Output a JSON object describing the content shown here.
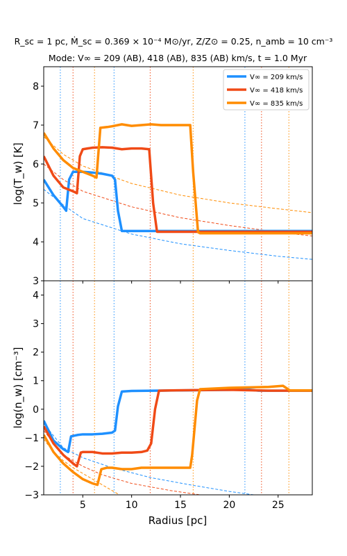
{
  "title_line1": "R_sc = 1 pc, Ṁ_sc = 0.369 × 10⁻⁴ M⊙/yr, Z/Z⊙ = 0.25, n_amb = 10 cm⁻³",
  "title_line2": "Mode: V∞ = 209 (AB), 418 (AB), 835 (AB) km/s, t = 1.0 Myr",
  "xlabel": "Radius [pc]",
  "colors": {
    "s209": "#1e90ff",
    "s418": "#f04a16",
    "s835": "#ff8c00"
  },
  "chart_data": [
    {
      "type": "line",
      "panel": "top",
      "ylabel": "log(T_w) [K]",
      "xlim": [
        1,
        28.5
      ],
      "ylim": [
        3,
        8.5
      ],
      "xticks": [
        5,
        10,
        15,
        20,
        25
      ],
      "yticks": [
        3,
        4,
        5,
        6,
        7,
        8
      ],
      "legend": [
        "V∞ = 209 km/s",
        "V∞ = 418 km/s",
        "V∞ = 835 km/s"
      ],
      "legend_position": "top-right",
      "series": [
        {
          "name": "V∞ = 209 km/s",
          "color": "#1e90ff",
          "x": [
            1,
            2,
            3,
            3.3,
            3.6,
            4,
            5,
            6,
            7,
            8,
            8.3,
            8.6,
            9,
            28.5
          ],
          "y": [
            5.6,
            5.2,
            4.9,
            4.8,
            5.6,
            5.8,
            5.8,
            5.78,
            5.75,
            5.7,
            5.6,
            4.8,
            4.28,
            4.28
          ]
        },
        {
          "name": "V∞ = 418 km/s",
          "color": "#f04a16",
          "x": [
            1,
            2,
            3,
            4,
            4.4,
            4.7,
            5,
            6,
            7,
            8,
            9,
            10,
            11,
            11.8,
            12.2,
            12.6,
            28.5
          ],
          "y": [
            6.2,
            5.7,
            5.4,
            5.3,
            5.25,
            6.2,
            6.38,
            6.42,
            6.43,
            6.42,
            6.38,
            6.4,
            6.4,
            6.38,
            5.0,
            4.26,
            4.26
          ]
        },
        {
          "name": "V∞ = 835 km/s",
          "color": "#ff8c00",
          "x": [
            1,
            2,
            3,
            4,
            5,
            6,
            6.4,
            6.8,
            7.5,
            8,
            9,
            10,
            11,
            12,
            13,
            14,
            15,
            16,
            16.3,
            16.8,
            17,
            28.5
          ],
          "y": [
            6.8,
            6.4,
            6.1,
            5.9,
            5.8,
            5.7,
            5.65,
            6.93,
            6.95,
            6.97,
            7.02,
            6.98,
            7.0,
            7.02,
            7.0,
            7.0,
            7.0,
            7.0,
            5.8,
            4.25,
            4.22,
            4.22
          ]
        }
      ],
      "dashed_reference": [
        {
          "color": "#1e90ff",
          "x": [
            1,
            3,
            5,
            10,
            15,
            20,
            25,
            28.5
          ],
          "y": [
            5.35,
            4.95,
            4.6,
            4.2,
            3.95,
            3.78,
            3.63,
            3.55
          ]
        },
        {
          "color": "#f04a16",
          "x": [
            1,
            3,
            5,
            10,
            15,
            20,
            25,
            28.5
          ],
          "y": [
            6.0,
            5.6,
            5.3,
            4.9,
            4.62,
            4.42,
            4.25,
            4.15
          ]
        },
        {
          "color": "#ff8c00",
          "x": [
            1,
            3,
            5,
            10,
            15,
            20,
            25,
            28.5
          ],
          "y": [
            6.7,
            6.25,
            5.95,
            5.5,
            5.2,
            5.0,
            4.85,
            4.75
          ]
        }
      ],
      "vlines": [
        {
          "color": "#1e90ff",
          "x": [
            2.7,
            8.2,
            21.6
          ]
        },
        {
          "color": "#f04a16",
          "x": [
            4.0,
            11.9,
            23.3
          ]
        },
        {
          "color": "#ff8c00",
          "x": [
            6.2,
            16.3,
            26.1
          ]
        }
      ]
    },
    {
      "type": "line",
      "panel": "bottom",
      "ylabel": "log(n_w) [cm⁻³]",
      "xlim": [
        1,
        28.5
      ],
      "ylim": [
        -3,
        4.5
      ],
      "xticks": [
        5,
        10,
        15,
        20,
        25
      ],
      "yticks": [
        -3,
        -2,
        -1,
        0,
        1,
        2,
        3,
        4
      ],
      "series": [
        {
          "name": "V∞ = 209 km/s",
          "color": "#1e90ff",
          "x": [
            1,
            2,
            3,
            3.5,
            3.8,
            4.5,
            5,
            6,
            7,
            8,
            8.3,
            8.6,
            9,
            10,
            15,
            20,
            21.5,
            23,
            28.5
          ],
          "y": [
            -0.4,
            -1.1,
            -1.4,
            -1.5,
            -0.95,
            -0.9,
            -0.88,
            -0.88,
            -0.86,
            -0.82,
            -0.75,
            0.1,
            0.62,
            0.64,
            0.66,
            0.68,
            0.7,
            0.65,
            0.65
          ]
        },
        {
          "name": "V∞ = 418 km/s",
          "color": "#f04a16",
          "x": [
            1,
            2,
            3,
            4,
            4.4,
            4.8,
            5,
            6,
            7,
            8,
            9,
            10,
            11,
            11.6,
            12,
            12.4,
            12.8,
            14,
            20,
            24,
            28.5
          ],
          "y": [
            -0.6,
            -1.2,
            -1.6,
            -1.9,
            -2.0,
            -1.52,
            -1.5,
            -1.5,
            -1.55,
            -1.55,
            -1.52,
            -1.52,
            -1.5,
            -1.45,
            -1.2,
            0.0,
            0.65,
            0.66,
            0.68,
            0.65,
            0.65
          ]
        },
        {
          "name": "V∞ = 835 km/s",
          "color": "#ff8c00",
          "x": [
            1,
            2,
            3,
            4,
            5,
            6,
            6.5,
            6.9,
            7.5,
            8,
            9,
            10,
            11,
            12,
            13,
            14,
            15,
            16,
            16.2,
            16.7,
            17,
            20,
            24,
            25.5,
            26.2,
            28.5
          ],
          "y": [
            -0.9,
            -1.5,
            -1.9,
            -2.2,
            -2.45,
            -2.6,
            -2.65,
            -2.1,
            -2.05,
            -2.05,
            -2.1,
            -2.1,
            -2.05,
            -2.05,
            -2.05,
            -2.05,
            -2.05,
            -2.05,
            -1.6,
            0.3,
            0.7,
            0.75,
            0.78,
            0.82,
            0.66,
            0.66
          ]
        }
      ],
      "dashed_reference": [
        {
          "color": "#1e90ff",
          "x": [
            1,
            3,
            5,
            8,
            12,
            16,
            20,
            22.5
          ],
          "y": [
            -0.5,
            -1.35,
            -1.7,
            -2.05,
            -2.4,
            -2.65,
            -2.88,
            -3.0
          ]
        },
        {
          "color": "#f04a16",
          "x": [
            1,
            3,
            5,
            7,
            10,
            14,
            18
          ],
          "y": [
            -0.75,
            -1.6,
            -2.0,
            -2.3,
            -2.6,
            -2.85,
            -3.05
          ]
        },
        {
          "color": "#ff8c00",
          "x": [
            1,
            2,
            3,
            4,
            5,
            6,
            7,
            8,
            9
          ],
          "y": [
            -1.05,
            -1.5,
            -1.8,
            -2.05,
            -2.25,
            -2.45,
            -2.65,
            -2.85,
            -3.05
          ]
        }
      ],
      "vlines": [
        {
          "color": "#1e90ff",
          "x": [
            2.7,
            8.2,
            21.6
          ]
        },
        {
          "color": "#f04a16",
          "x": [
            4.0,
            11.9,
            23.3
          ]
        },
        {
          "color": "#ff8c00",
          "x": [
            6.2,
            16.3,
            26.1
          ]
        }
      ]
    }
  ]
}
